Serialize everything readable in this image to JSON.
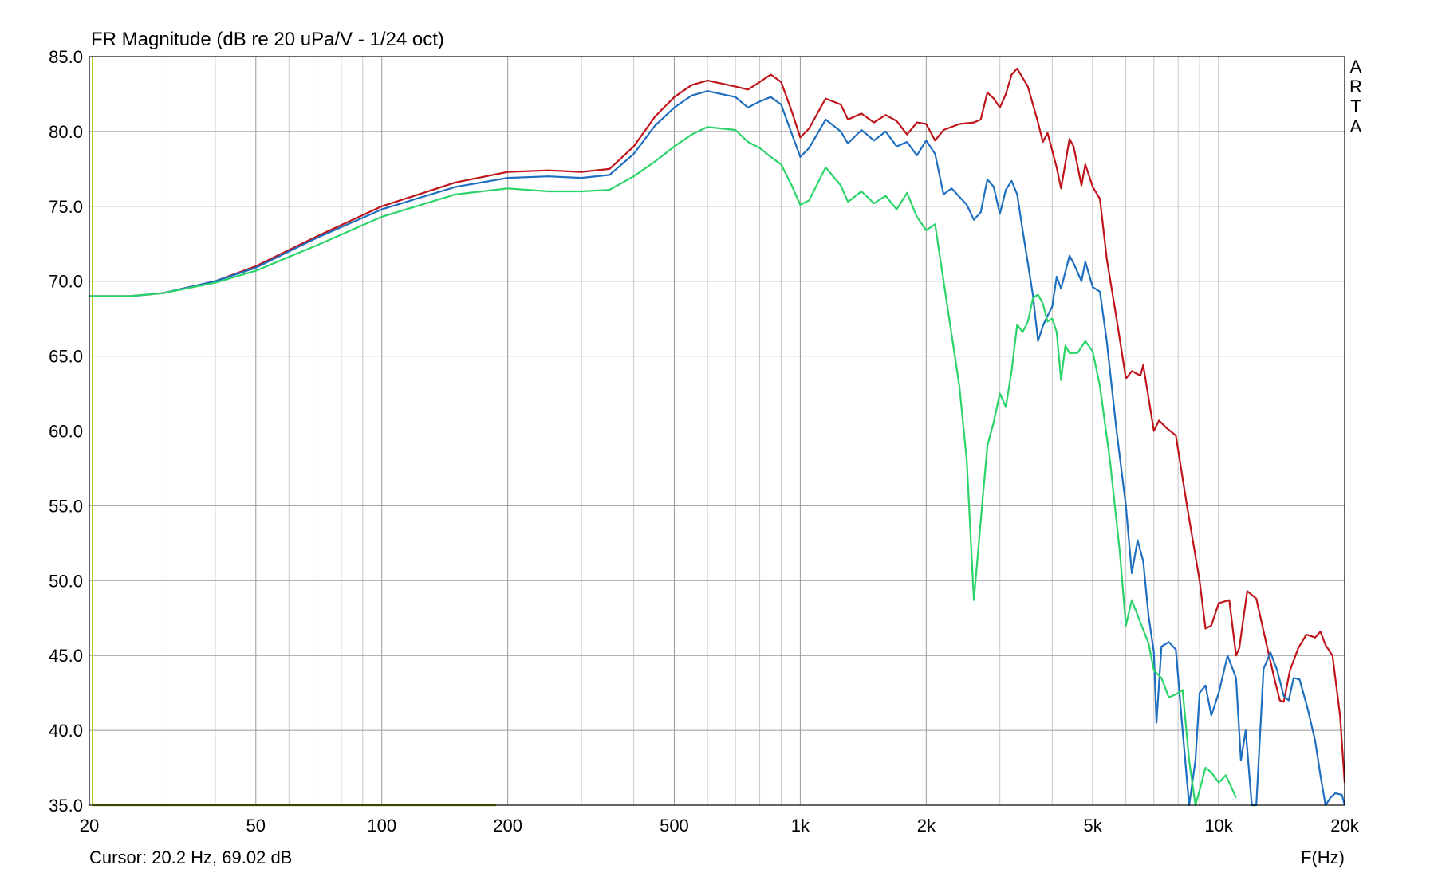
{
  "chart_data": {
    "type": "line",
    "title": "FR Magnitude (dB re 20 uPa/V - 1/24 oct)",
    "xlabel": "F(Hz)",
    "ylabel": "",
    "xscale": "log",
    "xlim": [
      20,
      20000
    ],
    "ylim": [
      35,
      85
    ],
    "grid": true,
    "x_ticks": [
      {
        "value": 20,
        "label": "20"
      },
      {
        "value": 50,
        "label": "50"
      },
      {
        "value": 100,
        "label": "100"
      },
      {
        "value": 200,
        "label": "200"
      },
      {
        "value": 500,
        "label": "500"
      },
      {
        "value": 1000,
        "label": "1k"
      },
      {
        "value": 2000,
        "label": "2k"
      },
      {
        "value": 5000,
        "label": "5k"
      },
      {
        "value": 10000,
        "label": "10k"
      },
      {
        "value": 20000,
        "label": "20k"
      }
    ],
    "y_ticks": [
      {
        "value": 85,
        "label": "85.0"
      },
      {
        "value": 80,
        "label": "80.0"
      },
      {
        "value": 75,
        "label": "75.0"
      },
      {
        "value": 70,
        "label": "70.0"
      },
      {
        "value": 65,
        "label": "65.0"
      },
      {
        "value": 60,
        "label": "60.0"
      },
      {
        "value": 55,
        "label": "55.0"
      },
      {
        "value": 50,
        "label": "50.0"
      },
      {
        "value": 45,
        "label": "45.0"
      },
      {
        "value": 40,
        "label": "40.0"
      },
      {
        "value": 35,
        "label": "35.0"
      }
    ],
    "cursor_readout": "Cursor: 20.2 Hz, 69.02 dB",
    "watermark": "ARTA",
    "series": [
      {
        "color": "#c0141b",
        "points": [
          [
            20,
            69
          ],
          [
            25,
            69
          ],
          [
            30,
            69.2
          ],
          [
            40,
            70
          ],
          [
            50,
            71
          ],
          [
            70,
            73
          ],
          [
            100,
            75
          ],
          [
            150,
            76.6
          ],
          [
            200,
            77.3
          ],
          [
            250,
            77.4
          ],
          [
            300,
            77.3
          ],
          [
            350,
            77.5
          ],
          [
            400,
            79
          ],
          [
            450,
            81
          ],
          [
            500,
            82.3
          ],
          [
            550,
            83.1
          ],
          [
            600,
            83.4
          ],
          [
            700,
            83
          ],
          [
            750,
            82.8
          ],
          [
            800,
            83.3
          ],
          [
            850,
            83.8
          ],
          [
            900,
            83.3
          ],
          [
            950,
            81.5
          ],
          [
            1000,
            79.6
          ],
          [
            1050,
            80.2
          ],
          [
            1150,
            82.2
          ],
          [
            1250,
            81.8
          ],
          [
            1300,
            80.8
          ],
          [
            1400,
            81.2
          ],
          [
            1500,
            80.6
          ],
          [
            1600,
            81.1
          ],
          [
            1700,
            80.7
          ],
          [
            1800,
            79.8
          ],
          [
            1900,
            80.6
          ],
          [
            2000,
            80.5
          ],
          [
            2100,
            79.4
          ],
          [
            2200,
            80.1
          ],
          [
            2400,
            80.5
          ],
          [
            2600,
            80.6
          ],
          [
            2700,
            80.8
          ],
          [
            2800,
            82.6
          ],
          [
            2900,
            82.2
          ],
          [
            3000,
            81.6
          ],
          [
            3100,
            82.5
          ],
          [
            3200,
            83.8
          ],
          [
            3300,
            84.2
          ],
          [
            3500,
            83
          ],
          [
            3700,
            80.6
          ],
          [
            3800,
            79.3
          ],
          [
            3900,
            79.9
          ],
          [
            4100,
            77.6
          ],
          [
            4200,
            76.2
          ],
          [
            4400,
            79.5
          ],
          [
            4500,
            79
          ],
          [
            4700,
            76.4
          ],
          [
            4800,
            77.8
          ],
          [
            5000,
            76.3
          ],
          [
            5200,
            75.5
          ],
          [
            5400,
            71.5
          ],
          [
            5700,
            67.5
          ],
          [
            6000,
            63.5
          ],
          [
            6200,
            64
          ],
          [
            6500,
            63.7
          ],
          [
            6600,
            64.4
          ],
          [
            7000,
            60
          ],
          [
            7200,
            60.7
          ],
          [
            7500,
            60.2
          ],
          [
            7900,
            59.7
          ],
          [
            8400,
            55
          ],
          [
            9000,
            50
          ],
          [
            9300,
            46.8
          ],
          [
            9600,
            47
          ],
          [
            10000,
            48.5
          ],
          [
            10600,
            48.7
          ],
          [
            11000,
            45
          ],
          [
            11200,
            45.5
          ],
          [
            11700,
            49.3
          ],
          [
            12300,
            48.8
          ],
          [
            13000,
            45.8
          ],
          [
            13600,
            43.4
          ],
          [
            14000,
            42
          ],
          [
            14300,
            41.9
          ],
          [
            14800,
            44
          ],
          [
            15500,
            45.5
          ],
          [
            16200,
            46.4
          ],
          [
            17000,
            46.2
          ],
          [
            17500,
            46.6
          ],
          [
            18000,
            45.7
          ],
          [
            18700,
            45
          ],
          [
            19500,
            41
          ],
          [
            20000,
            36.5
          ]
        ]
      },
      {
        "color": "#1e6fc0",
        "points": [
          [
            20,
            69
          ],
          [
            25,
            69
          ],
          [
            30,
            69.2
          ],
          [
            40,
            70
          ],
          [
            50,
            70.9
          ],
          [
            70,
            72.9
          ],
          [
            100,
            74.8
          ],
          [
            150,
            76.3
          ],
          [
            200,
            76.9
          ],
          [
            250,
            77
          ],
          [
            300,
            76.9
          ],
          [
            350,
            77.1
          ],
          [
            400,
            78.5
          ],
          [
            450,
            80.4
          ],
          [
            500,
            81.6
          ],
          [
            550,
            82.4
          ],
          [
            600,
            82.7
          ],
          [
            700,
            82.3
          ],
          [
            750,
            81.6
          ],
          [
            800,
            82
          ],
          [
            850,
            82.3
          ],
          [
            900,
            81.8
          ],
          [
            950,
            80
          ],
          [
            1000,
            78.3
          ],
          [
            1050,
            78.9
          ],
          [
            1150,
            80.8
          ],
          [
            1250,
            80
          ],
          [
            1300,
            79.2
          ],
          [
            1400,
            80.1
          ],
          [
            1500,
            79.4
          ],
          [
            1600,
            80
          ],
          [
            1700,
            79
          ],
          [
            1800,
            79.3
          ],
          [
            1900,
            78.4
          ],
          [
            2000,
            79.4
          ],
          [
            2100,
            78.5
          ],
          [
            2200,
            75.8
          ],
          [
            2300,
            76.2
          ],
          [
            2500,
            75.1
          ],
          [
            2600,
            74.1
          ],
          [
            2700,
            74.6
          ],
          [
            2800,
            76.8
          ],
          [
            2900,
            76.3
          ],
          [
            3000,
            74.5
          ],
          [
            3100,
            76.1
          ],
          [
            3200,
            76.7
          ],
          [
            3300,
            75.8
          ],
          [
            3400,
            73.4
          ],
          [
            3500,
            71.2
          ],
          [
            3600,
            69
          ],
          [
            3700,
            66
          ],
          [
            3800,
            67
          ],
          [
            3900,
            67.7
          ],
          [
            4000,
            68.3
          ],
          [
            4100,
            70.3
          ],
          [
            4200,
            69.5
          ],
          [
            4400,
            71.7
          ],
          [
            4500,
            71.2
          ],
          [
            4700,
            70
          ],
          [
            4800,
            71.3
          ],
          [
            5000,
            69.6
          ],
          [
            5200,
            69.3
          ],
          [
            5400,
            66
          ],
          [
            5700,
            60
          ],
          [
            6000,
            55
          ],
          [
            6200,
            50.5
          ],
          [
            6400,
            52.7
          ],
          [
            6600,
            51.3
          ],
          [
            6800,
            47.6
          ],
          [
            7000,
            45.2
          ],
          [
            7100,
            40.5
          ],
          [
            7300,
            45.6
          ],
          [
            7600,
            45.9
          ],
          [
            7900,
            45.4
          ],
          [
            8200,
            40
          ],
          [
            8500,
            35
          ],
          [
            8800,
            38
          ],
          [
            9000,
            42.5
          ],
          [
            9300,
            43
          ],
          [
            9600,
            41
          ],
          [
            10000,
            42.5
          ],
          [
            10500,
            45
          ],
          [
            11000,
            43.5
          ],
          [
            11300,
            38
          ],
          [
            11600,
            40
          ],
          [
            12000,
            34.8
          ],
          [
            12300,
            35
          ],
          [
            12800,
            44.1
          ],
          [
            13300,
            45.2
          ],
          [
            13800,
            44
          ],
          [
            14300,
            42.3
          ],
          [
            14700,
            42
          ],
          [
            15100,
            43.5
          ],
          [
            15600,
            43.4
          ],
          [
            16300,
            41.5
          ],
          [
            17000,
            39.3
          ],
          [
            17500,
            37
          ],
          [
            18000,
            35
          ],
          [
            18500,
            35.5
          ],
          [
            19000,
            35.8
          ],
          [
            19700,
            35.7
          ],
          [
            20000,
            35
          ]
        ]
      },
      {
        "color": "#2bd468",
        "points": [
          [
            20,
            69
          ],
          [
            25,
            69
          ],
          [
            30,
            69.2
          ],
          [
            40,
            69.9
          ],
          [
            50,
            70.7
          ],
          [
            70,
            72.4
          ],
          [
            100,
            74.3
          ],
          [
            150,
            75.8
          ],
          [
            200,
            76.2
          ],
          [
            250,
            76
          ],
          [
            300,
            76
          ],
          [
            350,
            76.1
          ],
          [
            400,
            77
          ],
          [
            450,
            78
          ],
          [
            500,
            79
          ],
          [
            550,
            79.8
          ],
          [
            600,
            80.3
          ],
          [
            700,
            80.1
          ],
          [
            750,
            79.3
          ],
          [
            800,
            78.9
          ],
          [
            850,
            78.3
          ],
          [
            900,
            77.8
          ],
          [
            950,
            76.5
          ],
          [
            1000,
            75.1
          ],
          [
            1050,
            75.4
          ],
          [
            1150,
            77.6
          ],
          [
            1250,
            76.4
          ],
          [
            1300,
            75.3
          ],
          [
            1400,
            76
          ],
          [
            1500,
            75.2
          ],
          [
            1600,
            75.7
          ],
          [
            1700,
            74.8
          ],
          [
            1800,
            75.9
          ],
          [
            1900,
            74.3
          ],
          [
            2000,
            73.4
          ],
          [
            2100,
            73.8
          ],
          [
            2200,
            70
          ],
          [
            2400,
            63
          ],
          [
            2500,
            58
          ],
          [
            2600,
            48.7
          ],
          [
            2700,
            54
          ],
          [
            2800,
            59
          ],
          [
            2900,
            60.6
          ],
          [
            3000,
            62.5
          ],
          [
            3100,
            61.6
          ],
          [
            3200,
            64
          ],
          [
            3300,
            67.1
          ],
          [
            3400,
            66.6
          ],
          [
            3500,
            67.3
          ],
          [
            3600,
            68.9
          ],
          [
            3700,
            69.1
          ],
          [
            3800,
            68.5
          ],
          [
            3900,
            67.3
          ],
          [
            4000,
            67.5
          ],
          [
            4100,
            66.6
          ],
          [
            4200,
            63.4
          ],
          [
            4300,
            65.7
          ],
          [
            4400,
            65.2
          ],
          [
            4600,
            65.2
          ],
          [
            4800,
            66
          ],
          [
            5000,
            65.3
          ],
          [
            5200,
            63
          ],
          [
            5500,
            58
          ],
          [
            5800,
            52
          ],
          [
            6000,
            47
          ],
          [
            6200,
            48.7
          ],
          [
            6500,
            47.2
          ],
          [
            6800,
            45.8
          ],
          [
            7000,
            44
          ],
          [
            7300,
            43.5
          ],
          [
            7600,
            42.2
          ],
          [
            7900,
            42.4
          ],
          [
            8200,
            42.7
          ],
          [
            8500,
            38
          ],
          [
            8800,
            35
          ],
          [
            9000,
            36
          ],
          [
            9300,
            37.5
          ],
          [
            9600,
            37.2
          ],
          [
            10000,
            36.5
          ],
          [
            10400,
            37
          ],
          [
            10800,
            36
          ],
          [
            11000,
            35.5
          ]
        ]
      }
    ]
  }
}
